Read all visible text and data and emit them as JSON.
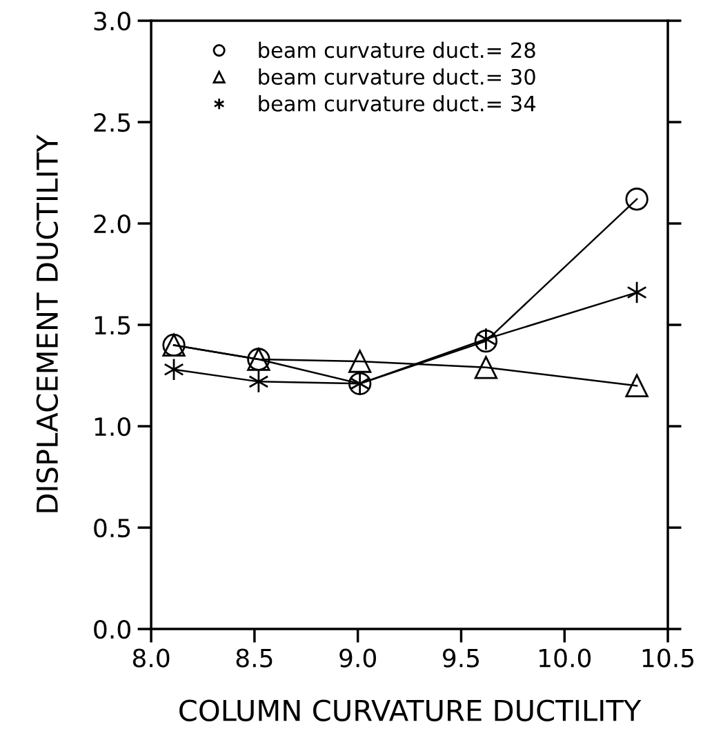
{
  "chart_data": {
    "type": "line",
    "xlabel": "COLUMN CURVATURE DUCTILITY",
    "ylabel": "DISPLACEMENT DUCTILITY",
    "x": [
      8.11,
      8.52,
      9.01,
      9.62,
      10.35
    ],
    "series": [
      {
        "name": "beam curvature duct.= 28",
        "color": "#000000",
        "marker": "circle",
        "values": [
          1.4,
          1.33,
          1.21,
          1.42,
          2.12
        ]
      },
      {
        "name": "beam curvature duct.= 30",
        "color": "#000000",
        "marker": "triangle",
        "values": [
          1.4,
          1.33,
          1.32,
          1.29,
          1.2
        ]
      },
      {
        "name": "beam curvature duct.= 34",
        "color": "#000000",
        "marker": "cross",
        "values": [
          1.28,
          1.22,
          1.21,
          1.43,
          1.66
        ]
      }
    ],
    "xlim": [
      8.0,
      10.5
    ],
    "xticks": [
      {
        "value": 8.0,
        "label": "8.0"
      },
      8.5,
      {
        "value": 9.0,
        "label": "9.0"
      },
      9.5,
      {
        "value": 10.0,
        "label": "10.0"
      },
      10.5
    ],
    "ylim": [
      0.0,
      3.0
    ],
    "yticks": [
      {
        "value": 0.0,
        "label": "0.0"
      },
      0.5,
      {
        "value": 1.0,
        "label": "1.0"
      },
      1.5,
      {
        "value": 2.0,
        "label": "2.0"
      },
      2.5,
      {
        "value": 3.0,
        "label": "3.0"
      }
    ],
    "grid": false,
    "legend": "top left",
    "line_style": "solid"
  }
}
